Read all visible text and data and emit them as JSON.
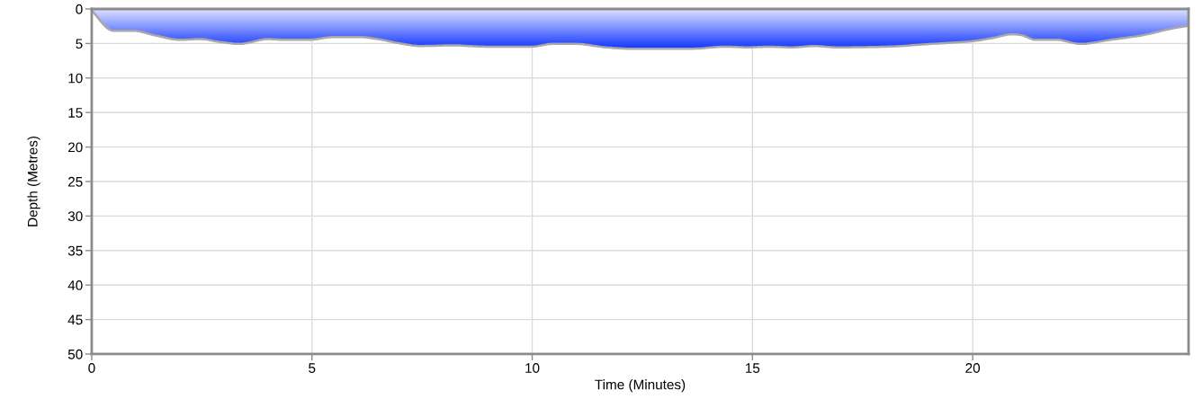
{
  "chart_data": {
    "type": "area",
    "xlabel": "Time (Minutes)",
    "ylabel": "Depth (Metres)",
    "series": [
      {
        "color": "#1a3cff",
        "x": [
          0,
          0.5,
          0.95,
          1.46,
          2.0,
          2.48,
          2.89,
          3.37,
          3.57,
          3.98,
          4.39,
          4.94,
          5.48,
          6.09,
          6.5,
          6.98,
          7.46,
          8.28,
          8.55,
          9.02,
          9.98,
          10.46,
          11.0,
          11.68,
          12.23,
          13.59,
          14.41,
          14.89,
          15.36,
          15.91,
          16.39,
          16.93,
          18.02,
          19.04,
          20.0,
          20.48,
          20.89,
          21.09,
          21.43,
          21.91,
          22.45,
          23.13,
          23.89,
          24.5,
          24.89
        ],
        "values": [
          0,
          3.0,
          3.0,
          3.7,
          4.3,
          4.2,
          4.6,
          4.9,
          4.7,
          4.2,
          4.3,
          4.3,
          3.9,
          3.9,
          4.2,
          4.8,
          5.2,
          5.1,
          5.2,
          5.3,
          5.3,
          4.9,
          4.9,
          5.4,
          5.6,
          5.6,
          5.3,
          5.4,
          5.3,
          5.4,
          5.2,
          5.4,
          5.3,
          4.9,
          4.5,
          4.0,
          3.5,
          3.6,
          4.3,
          4.3,
          4.9,
          4.3,
          3.6,
          2.7,
          2.3
        ]
      }
    ],
    "xlim": [
      0,
      24.9
    ],
    "ylim": [
      50,
      0
    ],
    "xticks": [
      0,
      5,
      10,
      15,
      20
    ],
    "yticks": [
      0,
      5,
      10,
      15,
      20,
      25,
      30,
      35,
      40,
      45,
      50
    ],
    "grid": true
  }
}
